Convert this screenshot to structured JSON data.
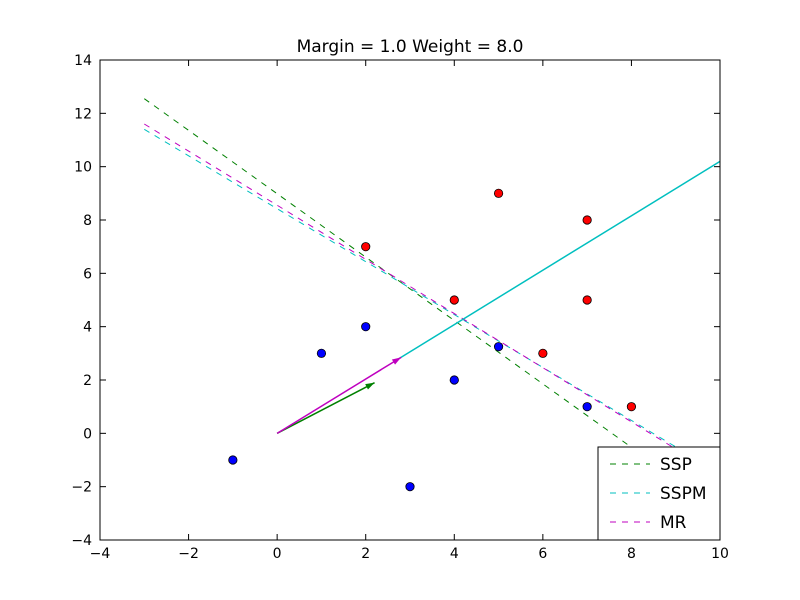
{
  "chart_data": {
    "type": "scatter",
    "title": "Margin = 1.0 Weight = 8.0",
    "xlabel": "",
    "ylabel": "",
    "xlim": [
      -4,
      10
    ],
    "ylim": [
      -4,
      14
    ],
    "xticks": [
      -4,
      -2,
      0,
      2,
      4,
      6,
      8,
      10
    ],
    "xtick_labels": [
      "−4",
      "−2",
      "0",
      "2",
      "4",
      "6",
      "8",
      "10"
    ],
    "yticks": [
      -4,
      -2,
      0,
      2,
      4,
      6,
      8,
      10,
      12,
      14
    ],
    "ytick_labels": [
      "−4",
      "−2",
      "0",
      "2",
      "4",
      "6",
      "8",
      "10",
      "12",
      "14"
    ],
    "grid": false,
    "legend_position": "lower-right",
    "points": [
      {
        "class": "blue",
        "color": "#0000ff",
        "x": [
          -1,
          1,
          2,
          3,
          4,
          5,
          7
        ],
        "y": [
          -1,
          3,
          4,
          -2,
          2,
          3.25,
          1
        ]
      },
      {
        "class": "red",
        "color": "#ff0000",
        "x": [
          2,
          4,
          5,
          6,
          7,
          7,
          8
        ],
        "y": [
          7,
          5,
          9,
          3,
          8,
          5,
          1
        ]
      }
    ],
    "series": [
      {
        "name": "SSP",
        "color": "#008000",
        "style": "dashed",
        "x": [
          -3,
          10
        ],
        "y": [
          12.55,
          -2.9
        ]
      },
      {
        "name": "SSPM",
        "color": "#00bfbf",
        "style": "dashed",
        "x": [
          -3,
          10
        ],
        "y": [
          11.4,
          -1.5
        ]
      },
      {
        "name": "MR",
        "color": "#bf00bf",
        "style": "dashed",
        "x": [
          -3,
          10
        ],
        "y": [
          11.6,
          -1.6
        ]
      }
    ],
    "solid_line": {
      "color": "#00bfbf",
      "x": [
        2.7,
        10
      ],
      "y": [
        2.75,
        10.2
      ]
    },
    "arrows": [
      {
        "color": "#008000",
        "x0": 0,
        "y0": 0,
        "x1": 2.2,
        "y1": 1.9
      },
      {
        "color": "#bf00bf",
        "x0": 0,
        "y0": 0,
        "x1": 2.8,
        "y1": 2.85
      }
    ]
  }
}
